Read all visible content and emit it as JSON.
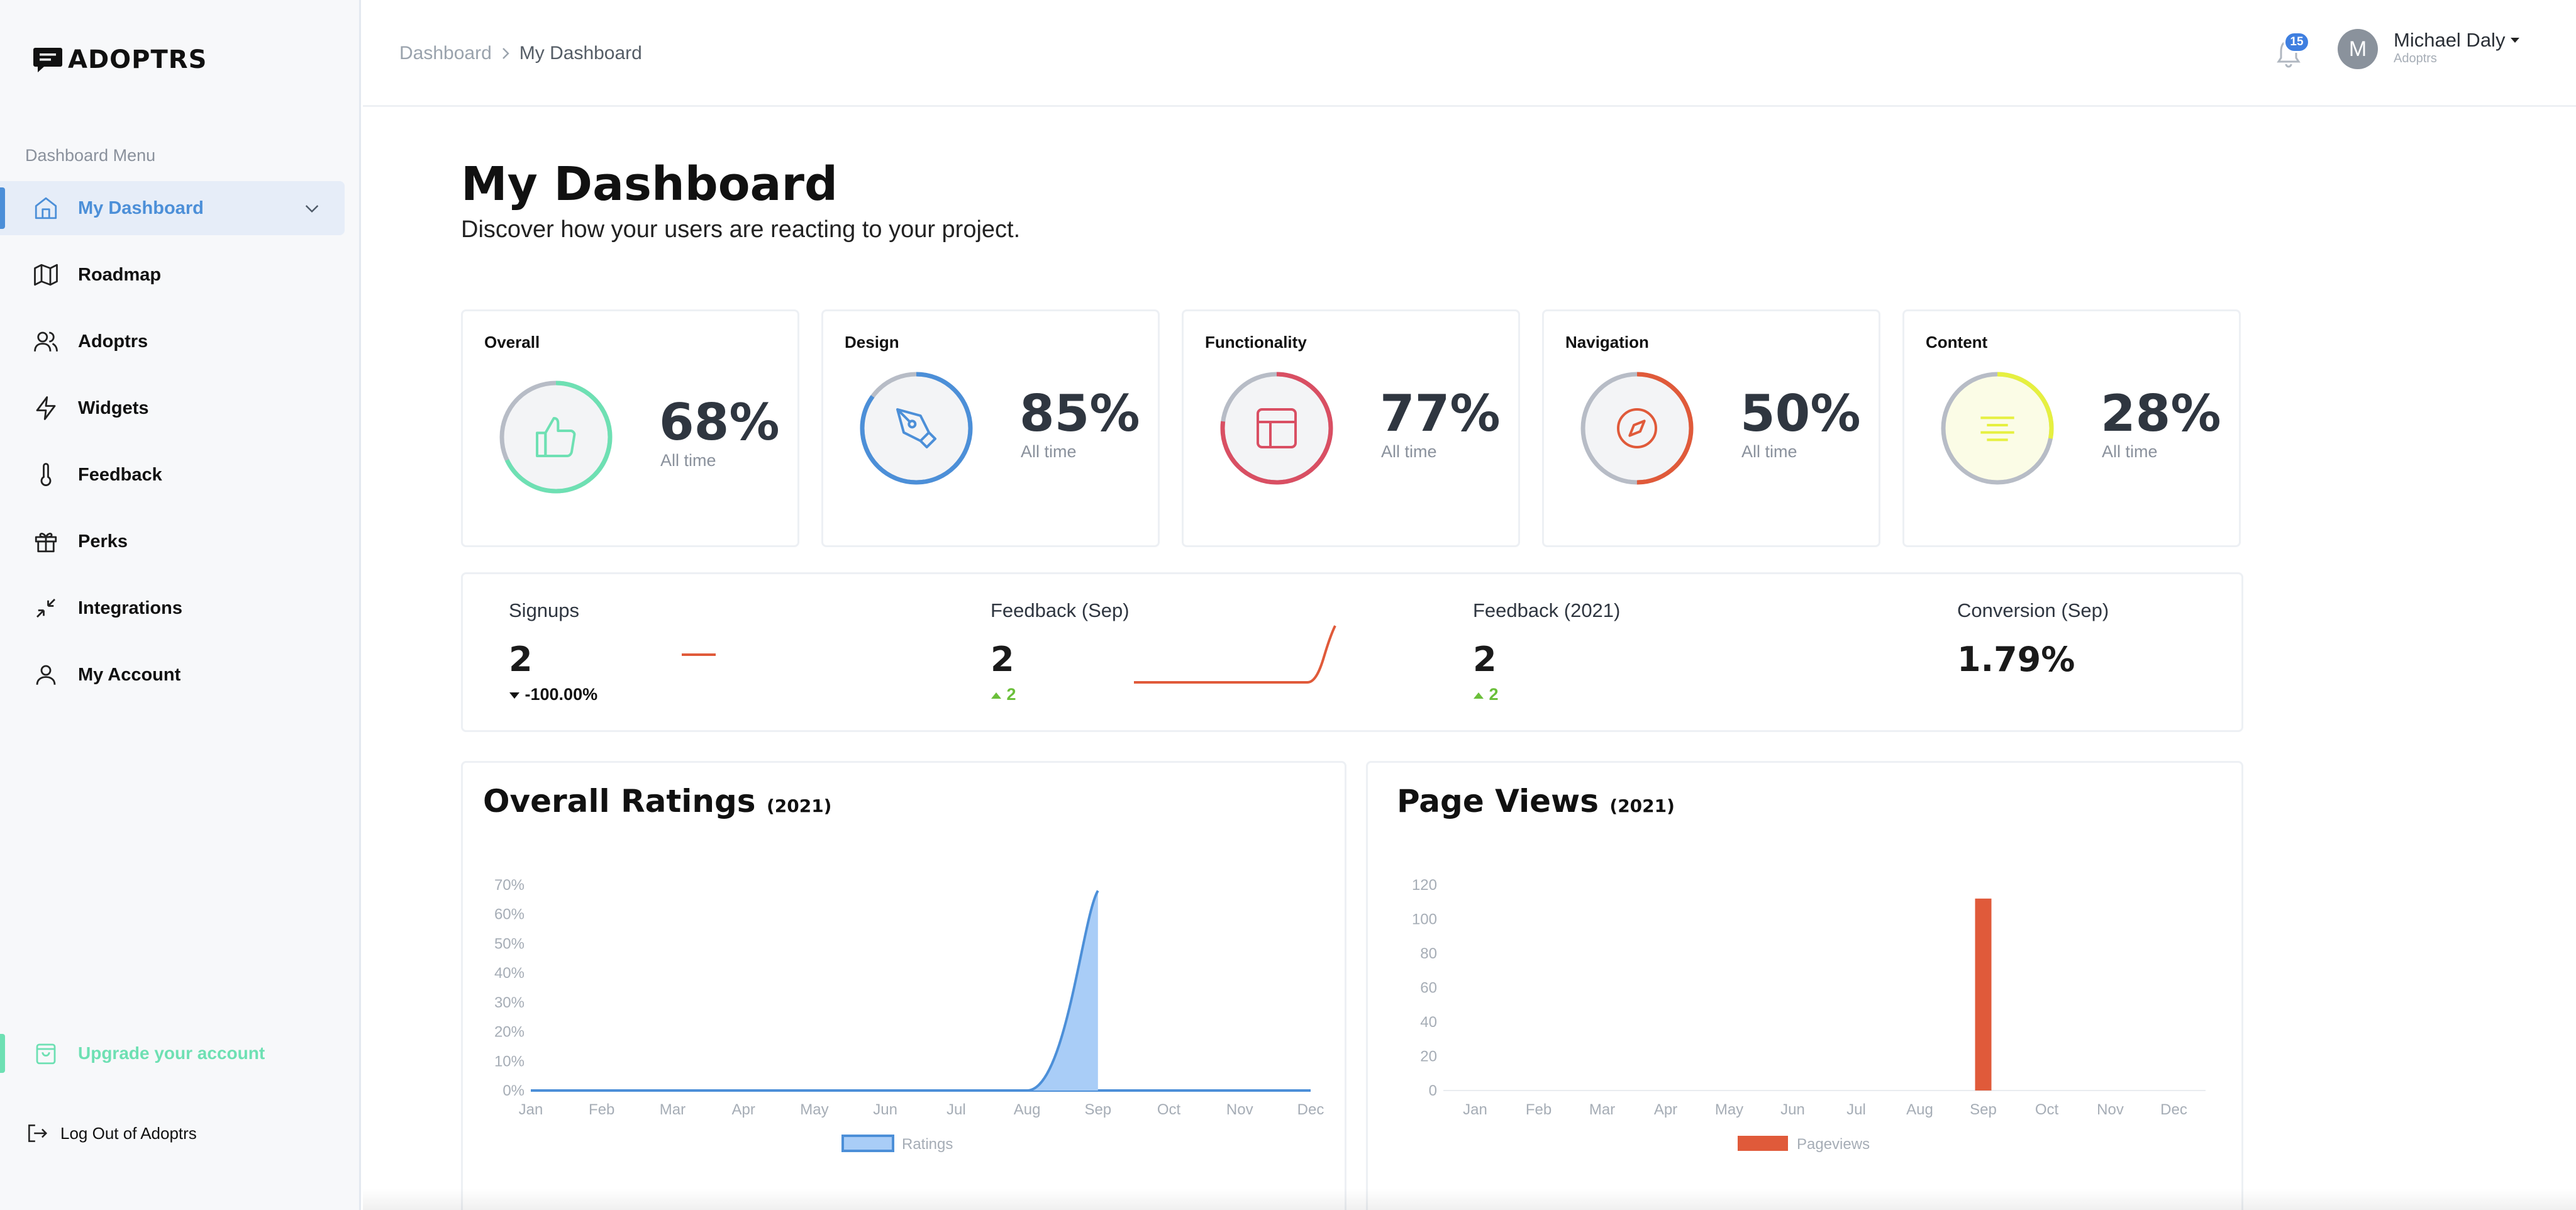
{
  "app": {
    "logo_text": "ADOPTRS"
  },
  "sidebar": {
    "heading": "Dashboard Menu",
    "items": [
      {
        "label": "My Dashboard",
        "icon": "home-icon",
        "active": true
      },
      {
        "label": "Roadmap",
        "icon": "map-icon"
      },
      {
        "label": "Adoptrs",
        "icon": "users-icon"
      },
      {
        "label": "Widgets",
        "icon": "lightning-icon"
      },
      {
        "label": "Feedback",
        "icon": "thermometer-icon"
      },
      {
        "label": "Perks",
        "icon": "gift-icon"
      },
      {
        "label": "Integrations",
        "icon": "collapse-arrows-icon"
      },
      {
        "label": "My Account",
        "icon": "user-icon"
      }
    ],
    "upgrade_label": "Upgrade your account",
    "logout_label": "Log Out of Adoptrs"
  },
  "header": {
    "breadcrumb": [
      "Dashboard",
      "My Dashboard"
    ],
    "notification_count": "15",
    "user_initial": "M",
    "user_name": "Michael Daly",
    "user_org": "Adoptrs"
  },
  "page": {
    "title": "My Dashboard",
    "subtitle": "Discover how your users are reacting to your project."
  },
  "ratings": [
    {
      "title": "Overall",
      "value": "68%",
      "caption": "All time",
      "fraction": 0.68,
      "color": "#6ee0b3",
      "icon": "thumbs-up-icon"
    },
    {
      "title": "Design",
      "value": "85%",
      "caption": "All time",
      "fraction": 0.85,
      "color": "#4c8fd8",
      "icon": "pen-tool-icon"
    },
    {
      "title": "Functionality",
      "value": "77%",
      "caption": "All time",
      "fraction": 0.77,
      "color": "#d94f63",
      "icon": "layout-icon"
    },
    {
      "title": "Navigation",
      "value": "50%",
      "caption": "All time",
      "fraction": 0.5,
      "color": "#e05a3a",
      "icon": "compass-icon"
    },
    {
      "title": "Content",
      "value": "28%",
      "caption": "All time",
      "fraction": 0.28,
      "color": "#e6f040",
      "icon": "align-center-icon"
    }
  ],
  "stats": [
    {
      "label": "Signups",
      "value": "2",
      "delta": "-100.00%",
      "direction": "down"
    },
    {
      "label": "Feedback (Sep)",
      "value": "2",
      "delta": "2",
      "direction": "up"
    },
    {
      "label": "Feedback (2021)",
      "value": "2",
      "delta": "2",
      "direction": "up"
    },
    {
      "label": "Conversion (Sep)",
      "value": "1.79%",
      "delta": "",
      "direction": "none"
    }
  ],
  "colors": {
    "accent": "#4c8fd8",
    "upgrade": "#6ee0b3",
    "pageviews": "#e05a3a",
    "ratings_fill": "#a9cdf7"
  },
  "chart_data": [
    {
      "type": "area",
      "title": "Overall Ratings",
      "title_year": "(2021)",
      "categories": [
        "Jan",
        "Feb",
        "Mar",
        "Apr",
        "May",
        "Jun",
        "Jul",
        "Aug",
        "Sep",
        "Oct",
        "Nov",
        "Dec"
      ],
      "series": [
        {
          "name": "Ratings",
          "values": [
            0,
            0,
            0,
            0,
            0,
            0,
            0,
            0,
            68,
            null,
            null,
            null
          ]
        }
      ],
      "y_ticks": [
        "0%",
        "10%",
        "20%",
        "30%",
        "40%",
        "50%",
        "60%",
        "70%"
      ],
      "ylim": [
        0,
        70
      ],
      "legend_position": "bottom"
    },
    {
      "type": "bar",
      "title": "Page Views",
      "title_year": "(2021)",
      "categories": [
        "Jan",
        "Feb",
        "Mar",
        "Apr",
        "May",
        "Jun",
        "Jul",
        "Aug",
        "Sep",
        "Oct",
        "Nov",
        "Dec"
      ],
      "series": [
        {
          "name": "Pageviews",
          "values": [
            0,
            0,
            0,
            0,
            0,
            0,
            0,
            0,
            112,
            0,
            0,
            0
          ]
        }
      ],
      "y_ticks": [
        "0",
        "20",
        "40",
        "60",
        "80",
        "100",
        "120"
      ],
      "ylim": [
        0,
        120
      ],
      "legend_position": "bottom"
    }
  ]
}
